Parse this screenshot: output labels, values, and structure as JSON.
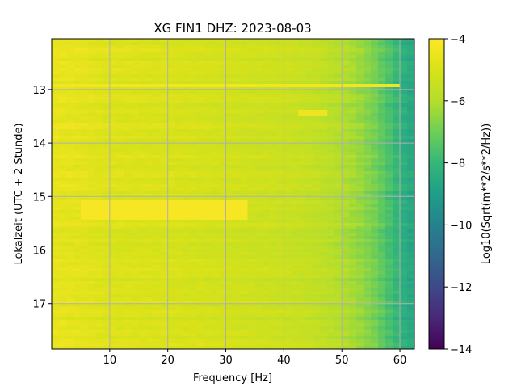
{
  "chart_data": {
    "type": "heatmap",
    "title": "XG FIN1  DHZ: 2023-08-03",
    "xlabel": "Frequency [Hz]",
    "ylabel": "Lokalzeit (UTC + 2 Stunde)",
    "colorbar_label": "Log10(Sqrt(m**2/s**2/Hz))",
    "colormap": "viridis",
    "xlim": [
      0,
      62.5
    ],
    "ylim": [
      17.85,
      12.05
    ],
    "y_axis_inverted": true,
    "clim": [
      -14,
      -4
    ],
    "grid": true,
    "x_ticks": [
      "10",
      "20",
      "30",
      "40",
      "50",
      "60"
    ],
    "y_ticks": [
      "13",
      "14",
      "15",
      "16",
      "17"
    ],
    "colorbar_ticks": [
      "−4",
      "−6",
      "−8",
      "−10",
      "−12",
      "−14"
    ],
    "frequency_profile_hz": [
      0,
      5,
      10,
      20,
      30,
      40,
      45,
      50,
      53,
      56,
      58,
      60,
      62.5
    ],
    "frequency_profile_value": [
      -4.6,
      -4.7,
      -4.9,
      -5.0,
      -5.2,
      -5.4,
      -5.6,
      -6.0,
      -6.4,
      -7.0,
      -7.6,
      -8.2,
      -8.7
    ],
    "features": [
      {
        "note": "strong band",
        "time_range": [
          15.05,
          15.45
        ],
        "freq_range": [
          5,
          34
        ],
        "value": -4.2
      },
      {
        "note": "bright band",
        "time_range": [
          13.4,
          13.5
        ],
        "freq_range": [
          42,
          47
        ],
        "value": -4.4
      },
      {
        "note": "bright line",
        "time_range": [
          12.9,
          12.95
        ],
        "freq_range": [
          0,
          60
        ],
        "value": -4.3
      }
    ]
  }
}
